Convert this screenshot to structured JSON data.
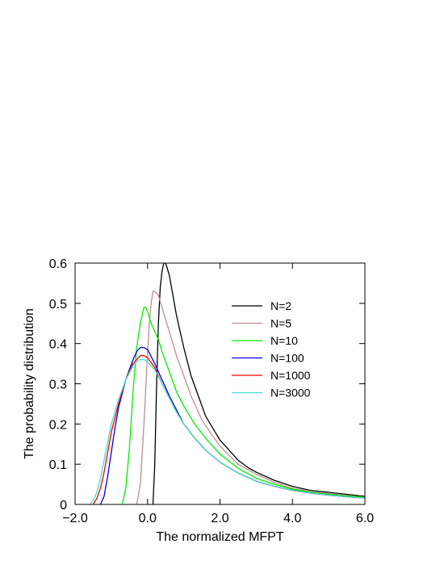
{
  "chart_data": {
    "type": "line",
    "title": "",
    "xlabel": "The normalized MFPT",
    "ylabel": "The probability distribution",
    "xlim": [
      -2.0,
      6.0
    ],
    "ylim": [
      0,
      0.6
    ],
    "x_ticks": [
      -2.0,
      0.0,
      2.0,
      4.0,
      6.0
    ],
    "x_tick_labels": [
      "−2.0",
      "0.0",
      "2.0",
      "4.0",
      "6.0"
    ],
    "y_ticks": [
      0,
      0.1,
      0.2,
      0.3,
      0.4,
      0.5,
      0.6
    ],
    "y_tick_labels": [
      "0",
      "0.1",
      "0.2",
      "0.3",
      "0.4",
      "0.5",
      "0.6"
    ],
    "grid": false,
    "legend_position": "top-right",
    "series": [
      {
        "name": "N=2",
        "color": "#000000",
        "x": [
          0.15,
          0.2,
          0.25,
          0.3,
          0.35,
          0.4,
          0.45,
          0.5,
          0.6,
          0.7,
          0.8,
          0.9,
          1.0,
          1.2,
          1.4,
          1.6,
          1.8,
          2.0,
          2.2,
          2.5,
          2.8,
          3.0,
          3.5,
          4.0,
          4.5,
          5.0,
          5.5,
          6.0
        ],
        "y": [
          0.0,
          0.1,
          0.3,
          0.45,
          0.54,
          0.58,
          0.6,
          0.6,
          0.57,
          0.52,
          0.47,
          0.43,
          0.39,
          0.32,
          0.27,
          0.22,
          0.19,
          0.16,
          0.14,
          0.11,
          0.09,
          0.08,
          0.06,
          0.045,
          0.035,
          0.03,
          0.025,
          0.02
        ]
      },
      {
        "name": "N=5",
        "color": "#bc8f8f",
        "x": [
          -0.3,
          -0.2,
          -0.1,
          0.0,
          0.05,
          0.1,
          0.15,
          0.2,
          0.3,
          0.4,
          0.5,
          0.6,
          0.8,
          1.0,
          1.2,
          1.5,
          1.8,
          2.0,
          2.5,
          3.0,
          3.5,
          4.0,
          4.5,
          5.0,
          5.5,
          6.0
        ],
        "y": [
          0.0,
          0.05,
          0.2,
          0.38,
          0.45,
          0.5,
          0.53,
          0.53,
          0.52,
          0.49,
          0.46,
          0.43,
          0.37,
          0.32,
          0.27,
          0.21,
          0.17,
          0.145,
          0.1,
          0.075,
          0.055,
          0.04,
          0.033,
          0.027,
          0.022,
          0.018
        ]
      },
      {
        "name": "N=10",
        "color": "#00ee00",
        "x": [
          -0.7,
          -0.6,
          -0.5,
          -0.4,
          -0.3,
          -0.2,
          -0.15,
          -0.1,
          -0.05,
          0.0,
          0.1,
          0.2,
          0.3,
          0.4,
          0.6,
          0.8,
          1.0,
          1.3,
          1.6,
          2.0,
          2.5,
          3.0,
          3.5,
          4.0,
          4.5,
          5.0,
          5.5,
          6.0
        ],
        "y": [
          0.0,
          0.04,
          0.14,
          0.28,
          0.39,
          0.45,
          0.47,
          0.49,
          0.49,
          0.48,
          0.45,
          0.43,
          0.41,
          0.38,
          0.33,
          0.28,
          0.245,
          0.2,
          0.165,
          0.125,
          0.09,
          0.065,
          0.05,
          0.038,
          0.03,
          0.025,
          0.021,
          0.018
        ]
      },
      {
        "name": "N=100",
        "color": "#0000dd",
        "x": [
          -1.3,
          -1.2,
          -1.1,
          -1.0,
          -0.9,
          -0.8,
          -0.6,
          -0.4,
          -0.3,
          -0.2,
          -0.1,
          0.0,
          0.2,
          0.4,
          0.6,
          0.8,
          1.0,
          1.3,
          1.6,
          2.0,
          2.5,
          3.0,
          3.5,
          4.0,
          4.5,
          5.0,
          5.5,
          6.0
        ],
        "y": [
          0.0,
          0.02,
          0.07,
          0.13,
          0.19,
          0.24,
          0.31,
          0.36,
          0.38,
          0.39,
          0.39,
          0.385,
          0.35,
          0.31,
          0.27,
          0.235,
          0.2,
          0.165,
          0.135,
          0.105,
          0.078,
          0.058,
          0.045,
          0.035,
          0.028,
          0.023,
          0.019,
          0.016
        ]
      },
      {
        "name": "N=1000",
        "color": "#ff0000",
        "x": [
          -1.5,
          -1.4,
          -1.3,
          -1.2,
          -1.1,
          -1.0,
          -0.8,
          -0.6,
          -0.4,
          -0.3,
          -0.2,
          -0.1,
          0.0,
          0.2,
          0.4,
          0.6,
          0.8,
          1.0,
          1.3,
          1.6,
          2.0,
          2.5,
          3.0,
          3.5,
          4.0,
          4.5,
          5.0,
          5.5,
          6.0
        ],
        "y": [
          0.0,
          0.015,
          0.04,
          0.08,
          0.13,
          0.18,
          0.25,
          0.31,
          0.35,
          0.36,
          0.37,
          0.37,
          0.365,
          0.34,
          0.3,
          0.265,
          0.23,
          0.2,
          0.165,
          0.135,
          0.105,
          0.078,
          0.058,
          0.045,
          0.035,
          0.028,
          0.023,
          0.019,
          0.016
        ]
      },
      {
        "name": "N=3000",
        "color": "#40e0d0",
        "x": [
          -1.6,
          -1.5,
          -1.4,
          -1.3,
          -1.2,
          -1.1,
          -1.0,
          -0.8,
          -0.6,
          -0.4,
          -0.3,
          -0.2,
          -0.1,
          0.0,
          0.2,
          0.4,
          0.6,
          0.8,
          1.0,
          1.3,
          1.6,
          2.0,
          2.5,
          3.0,
          3.5,
          4.0,
          4.5,
          5.0,
          5.5,
          6.0
        ],
        "y": [
          0.0,
          0.01,
          0.03,
          0.065,
          0.11,
          0.155,
          0.2,
          0.26,
          0.31,
          0.345,
          0.355,
          0.36,
          0.36,
          0.355,
          0.335,
          0.3,
          0.265,
          0.23,
          0.2,
          0.165,
          0.135,
          0.105,
          0.078,
          0.058,
          0.045,
          0.035,
          0.028,
          0.023,
          0.019,
          0.016
        ]
      }
    ]
  }
}
